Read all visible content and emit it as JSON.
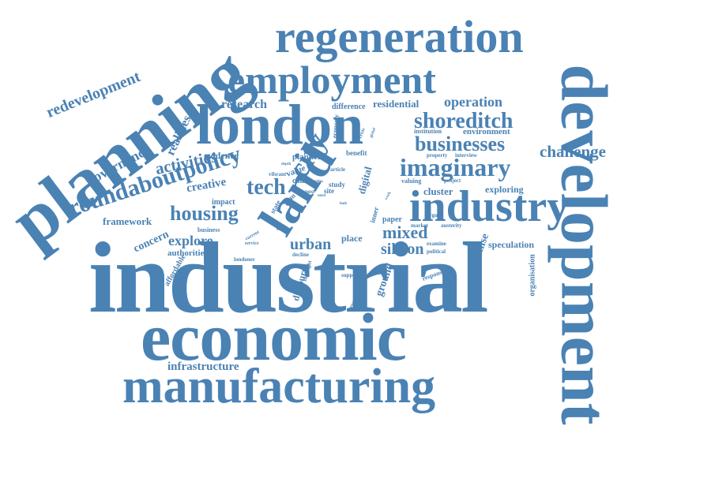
{
  "colors": {
    "word": "#4a82b4",
    "background": "#ffffff"
  },
  "words": [
    {
      "id": "industrial",
      "text": "industrial"
    },
    {
      "id": "development",
      "text": "development"
    },
    {
      "id": "planning",
      "text": "planning"
    },
    {
      "id": "economic",
      "text": "economic"
    },
    {
      "id": "manufacturing",
      "text": "manufacturing"
    },
    {
      "id": "london",
      "text": "london"
    },
    {
      "id": "regeneration",
      "text": "regeneration"
    },
    {
      "id": "employment",
      "text": "employment"
    },
    {
      "id": "industry",
      "text": "industry"
    },
    {
      "id": "land",
      "text": "land"
    },
    {
      "id": "imaginary",
      "text": "imaginary"
    },
    {
      "id": "businesses",
      "text": "businesses"
    },
    {
      "id": "shoreditch",
      "text": "shoreditch"
    },
    {
      "id": "roundaboutpolicy",
      "text": "roundaboutpolicy"
    },
    {
      "id": "housing",
      "text": "housing"
    },
    {
      "id": "tech",
      "text": "tech"
    },
    {
      "id": "city",
      "text": "city"
    },
    {
      "id": "redevelopment",
      "text": "redevelopment"
    },
    {
      "id": "governance",
      "text": "governance"
    },
    {
      "id": "activities",
      "text": "activities"
    },
    {
      "id": "realities",
      "text": "realities"
    },
    {
      "id": "research",
      "text": "research"
    },
    {
      "id": "operation",
      "text": "operation"
    },
    {
      "id": "residential",
      "text": "residential"
    },
    {
      "id": "difference",
      "text": "difference"
    },
    {
      "id": "challenge",
      "text": "challenge"
    },
    {
      "id": "mixed",
      "text": "mixed"
    },
    {
      "id": "silicon",
      "text": "silicon"
    },
    {
      "id": "urban",
      "text": "urban"
    },
    {
      "id": "explore",
      "text": "explore"
    },
    {
      "id": "infrastructure",
      "text": "infrastructure"
    },
    {
      "id": "framework",
      "text": "framework"
    },
    {
      "id": "concern",
      "text": "concern"
    },
    {
      "id": "authorities",
      "text": "authorities"
    },
    {
      "id": "affordable",
      "text": "affordable"
    },
    {
      "id": "creative",
      "text": "creative"
    },
    {
      "id": "evidence",
      "text": "evidence"
    },
    {
      "id": "impact",
      "text": "impact"
    },
    {
      "id": "business",
      "text": "business"
    },
    {
      "id": "cluster",
      "text": "cluster"
    },
    {
      "id": "exploring",
      "text": "exploring"
    },
    {
      "id": "speculation",
      "text": "speculation"
    },
    {
      "id": "premise",
      "text": "premise"
    },
    {
      "id": "organisation",
      "text": "organisation"
    },
    {
      "id": "ground",
      "text": "ground"
    },
    {
      "id": "discourse",
      "text": "discourse"
    },
    {
      "id": "digital",
      "text": "digital"
    },
    {
      "id": "place",
      "text": "place"
    },
    {
      "id": "paper",
      "text": "paper"
    },
    {
      "id": "planner",
      "text": "planner"
    },
    {
      "id": "environment",
      "text": "environment"
    },
    {
      "id": "institution",
      "text": "institution"
    },
    {
      "id": "benefit",
      "text": "benefit"
    },
    {
      "id": "study",
      "text": "study"
    },
    {
      "id": "cause",
      "text": "cause"
    },
    {
      "id": "value",
      "text": "value"
    },
    {
      "id": "valuing",
      "text": "valuing"
    },
    {
      "id": "property",
      "text": "property"
    },
    {
      "id": "interview",
      "text": "interview"
    },
    {
      "id": "project",
      "text": "project"
    },
    {
      "id": "economy",
      "text": "economy"
    },
    {
      "id": "vibrant",
      "text": "vibrant"
    },
    {
      "id": "article",
      "text": "article"
    },
    {
      "id": "post",
      "text": "post"
    },
    {
      "id": "site",
      "text": "site"
    },
    {
      "id": "state",
      "text": "state"
    },
    {
      "id": "plan",
      "text": "plan"
    },
    {
      "id": "inner",
      "text": "inner"
    },
    {
      "id": "argue",
      "text": "argue"
    },
    {
      "id": "market",
      "text": "market"
    },
    {
      "id": "austerity",
      "text": "austerity"
    },
    {
      "id": "examine",
      "text": "examine"
    },
    {
      "id": "political",
      "text": "political"
    },
    {
      "id": "response",
      "text": "response"
    },
    {
      "id": "support",
      "text": "support"
    },
    {
      "id": "decline",
      "text": "decline"
    },
    {
      "id": "highlight",
      "text": "highlight"
    },
    {
      "id": "londoner",
      "text": "londoner"
    },
    {
      "id": "service",
      "text": "service"
    },
    {
      "id": "current",
      "text": "current"
    },
    {
      "id": "status",
      "text": "status"
    },
    {
      "id": "critical",
      "text": "critical"
    },
    {
      "id": "semiotic",
      "text": "semiotic"
    },
    {
      "id": "crisis",
      "text": "crisis"
    },
    {
      "id": "depth",
      "text": "depth"
    },
    {
      "id": "global",
      "text": "global"
    },
    {
      "id": "look",
      "text": "look"
    },
    {
      "id": "cities",
      "text": "cities"
    },
    {
      "id": "need",
      "text": "need"
    },
    {
      "id": "work",
      "text": "work"
    }
  ]
}
